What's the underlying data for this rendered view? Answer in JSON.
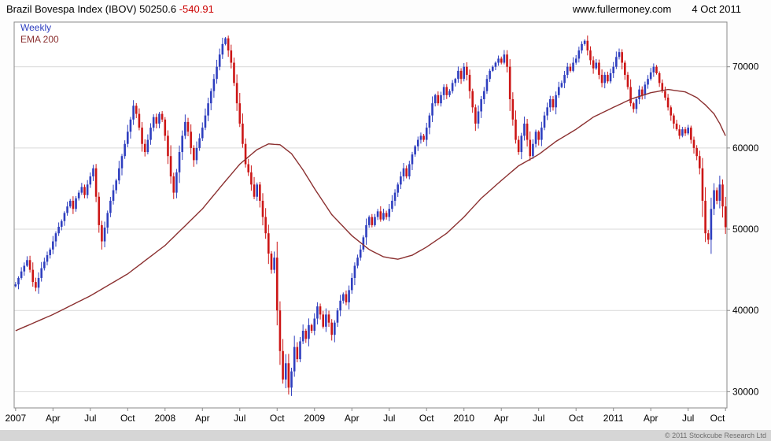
{
  "header": {
    "title": "Brazil Bovespa Index (IBOV)",
    "last_price": "50250.6",
    "change": "-540.91",
    "website": "www.fullermoney.com",
    "date": "4 Oct 2011"
  },
  "legend": {
    "series1": "Weekly",
    "series2": "EMA 200"
  },
  "footer": {
    "copyright": "© 2011 Stockcube Research Ltd"
  },
  "colors": {
    "up": "#2f3fbf",
    "down": "#cc1616",
    "ema": "#8b3030",
    "change": "#cc0000",
    "grid": "#d9d9d9",
    "border": "#8a8a8a",
    "tick_text": "#000000"
  },
  "chart_data": {
    "type": "candlestick",
    "title": "Brazil Bovespa Index (IBOV) 50250.6 -540.91",
    "subtitle": "Weekly candles with 200-period EMA",
    "xlabel": "",
    "ylabel": "",
    "grid": "horizontal-only",
    "legend_position": "top-left-inside",
    "ylim": [
      28000,
      75500
    ],
    "y_ticks": [
      30000,
      40000,
      50000,
      60000,
      70000
    ],
    "x_tick_weeks": [
      0,
      13,
      26,
      39,
      52,
      65,
      78,
      91,
      104,
      117,
      130,
      143,
      156,
      169,
      182,
      195,
      208,
      221,
      234,
      247
    ],
    "x_tick_labels": [
      "2007",
      "Apr",
      "Jul",
      "Oct",
      "2008",
      "Apr",
      "Jul",
      "Oct",
      "2009",
      "Apr",
      "Jul",
      "Oct",
      "2010",
      "Apr",
      "Jul",
      "Oct",
      "2011",
      "Apr",
      "Jul",
      "Oct"
    ],
    "series": [
      {
        "name": "Weekly",
        "kind": "candlestick",
        "weekly_close": [
          43200,
          44000,
          44800,
          45500,
          46200,
          45000,
          43500,
          42800,
          44000,
          45200,
          46000,
          46800,
          47500,
          48500,
          49500,
          50300,
          51000,
          52000,
          52800,
          53500,
          52500,
          53800,
          54500,
          55200,
          54200,
          55500,
          56500,
          57500,
          54000,
          50500,
          48500,
          50200,
          52000,
          53500,
          54800,
          56000,
          57500,
          59000,
          60500,
          62000,
          63500,
          65200,
          64200,
          62500,
          60500,
          59500,
          61000,
          62500,
          63800,
          63000,
          64200,
          63500,
          61500,
          59000,
          56500,
          54500,
          57000,
          59500,
          61500,
          63200,
          62000,
          60000,
          58500,
          60000,
          61200,
          62500,
          64000,
          65500,
          67000,
          68500,
          70000,
          71500,
          72800,
          73500,
          72000,
          70500,
          68000,
          65500,
          63000,
          60500,
          58000,
          57000,
          55500,
          54000,
          55500,
          53500,
          51500,
          49500,
          47000,
          45000,
          46500,
          40000,
          35000,
          31500,
          33500,
          30500,
          32500,
          35500,
          34000,
          36200,
          37500,
          36500,
          38200,
          37500,
          39000,
          40500,
          39500,
          38000,
          39500,
          38500,
          37000,
          38500,
          40000,
          41200,
          42000,
          41000,
          42500,
          44000,
          45500,
          46500,
          47500,
          49000,
          50500,
          51500,
          50500,
          51500,
          52200,
          51200,
          52000,
          51500,
          52500,
          53500,
          54500,
          55500,
          56500,
          57500,
          56500,
          58000,
          59200,
          60200,
          61000,
          61500,
          61000,
          62500,
          64000,
          65500,
          66500,
          65500,
          66500,
          67500,
          66500,
          67000,
          68000,
          68500,
          69500,
          68500,
          70000,
          69000,
          67000,
          65000,
          63000,
          64500,
          66000,
          67000,
          68500,
          69500,
          70000,
          70500,
          71000,
          70500,
          71500,
          70000,
          66000,
          63500,
          61000,
          59500,
          61500,
          63000,
          61000,
          59000,
          60500,
          62000,
          61000,
          62500,
          64000,
          65000,
          66000,
          65000,
          66500,
          67500,
          68000,
          69000,
          70000,
          69500,
          70500,
          71000,
          72000,
          72800,
          73200,
          72000,
          70800,
          69800,
          70500,
          69000,
          68000,
          69000,
          68200,
          69200,
          70000,
          71200,
          71800,
          70500,
          69000,
          67500,
          65500,
          64800,
          66000,
          67200,
          66500,
          67800,
          68500,
          69300,
          70000,
          69200,
          68000,
          67000,
          66200,
          65000,
          64000,
          63000,
          62300,
          61500,
          62300,
          61800,
          62500,
          61000,
          60000,
          59000,
          57500,
          53500,
          49500,
          48700,
          52500,
          54800,
          53500,
          55500,
          52800,
          50250.6
        ]
      },
      {
        "name": "EMA 200",
        "kind": "line",
        "anchors": [
          [
            0,
            37500
          ],
          [
            13,
            39500
          ],
          [
            26,
            41800
          ],
          [
            39,
            44500
          ],
          [
            52,
            48000
          ],
          [
            65,
            52500
          ],
          [
            72,
            55500
          ],
          [
            78,
            58000
          ],
          [
            84,
            59800
          ],
          [
            88,
            60500
          ],
          [
            92,
            60400
          ],
          [
            96,
            59300
          ],
          [
            100,
            57300
          ],
          [
            104,
            55000
          ],
          [
            110,
            51800
          ],
          [
            117,
            49200
          ],
          [
            123,
            47500
          ],
          [
            128,
            46600
          ],
          [
            133,
            46300
          ],
          [
            138,
            46800
          ],
          [
            143,
            47800
          ],
          [
            150,
            49500
          ],
          [
            156,
            51500
          ],
          [
            162,
            53800
          ],
          [
            169,
            56000
          ],
          [
            175,
            57800
          ],
          [
            182,
            59200
          ],
          [
            188,
            60800
          ],
          [
            195,
            62300
          ],
          [
            201,
            63800
          ],
          [
            208,
            65000
          ],
          [
            214,
            66000
          ],
          [
            221,
            66800
          ],
          [
            227,
            67200
          ],
          [
            233,
            66900
          ],
          [
            237,
            66200
          ],
          [
            240,
            65300
          ],
          [
            243,
            64200
          ],
          [
            245,
            63000
          ],
          [
            247,
            61500
          ]
        ]
      }
    ]
  }
}
